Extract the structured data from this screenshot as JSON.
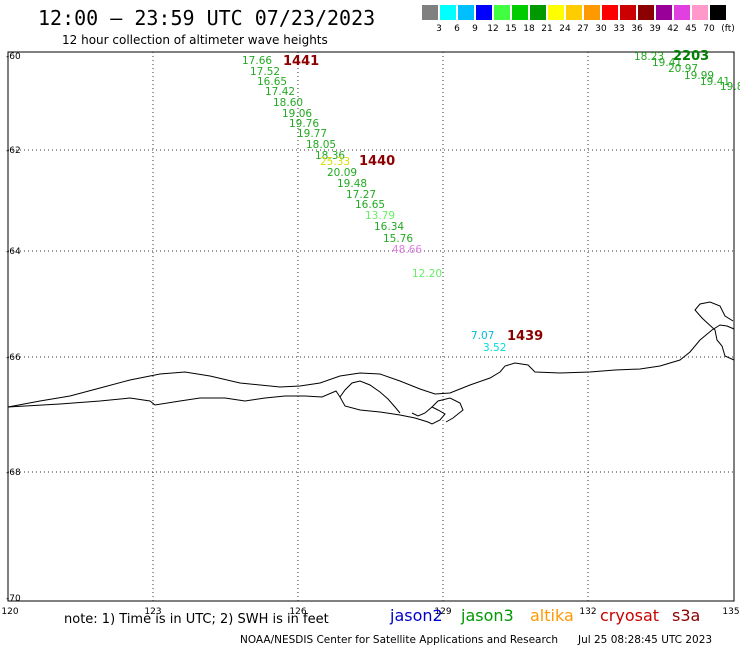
{
  "header": {
    "title": "12:00 – 23:59 UTC 07/23/2023",
    "subtitle": "12 hour collection of altimeter wave heights"
  },
  "scale": {
    "unit": "(ft)",
    "colors": [
      "#808080",
      "#00ffff",
      "#00bfff",
      "#0000ff",
      "#40ff40",
      "#00cc00",
      "#009900",
      "#ffff00",
      "#ffcc00",
      "#ff9900",
      "#ff0000",
      "#cc0000",
      "#8b0000",
      "#990099",
      "#e040e0",
      "#ff99cc",
      "#000000"
    ],
    "labels": [
      "3",
      "6",
      "9",
      "12",
      "15",
      "18",
      "21",
      "24",
      "27",
      "30",
      "33",
      "36",
      "39",
      "42",
      "45",
      "70"
    ]
  },
  "axes": {
    "lat_labels": [
      "-60",
      "-62",
      "-64",
      "-66",
      "-68",
      "-70"
    ],
    "lon_labels": [
      "120",
      "123",
      "126",
      "129",
      "132",
      "135"
    ]
  },
  "passes": [
    {
      "id": "1441",
      "color": "#8b0000"
    },
    {
      "id": "1440",
      "color": "#8b0000"
    },
    {
      "id": "1439",
      "color": "#8b0000"
    },
    {
      "id": "2203",
      "color": "#008000"
    }
  ],
  "wave_heights": [
    {
      "text": "17.66",
      "color": "#22aa22"
    },
    {
      "text": "17.52",
      "color": "#22aa22"
    },
    {
      "text": "16.65",
      "color": "#22aa22"
    },
    {
      "text": "17.42",
      "color": "#22aa22"
    },
    {
      "text": "18.60",
      "color": "#22aa22"
    },
    {
      "text": "19.06",
      "color": "#22aa22"
    },
    {
      "text": "19.76",
      "color": "#22aa22"
    },
    {
      "text": "19.77",
      "color": "#22aa22"
    },
    {
      "text": "18.05",
      "color": "#22aa22"
    },
    {
      "text": "18.36",
      "color": "#22aa22"
    },
    {
      "text": "25.33",
      "color": "#dddd00"
    },
    {
      "text": "20.09",
      "color": "#22aa22"
    },
    {
      "text": "19.48",
      "color": "#22aa22"
    },
    {
      "text": "17.27",
      "color": "#22aa22"
    },
    {
      "text": "16.65",
      "color": "#22aa22"
    },
    {
      "text": "13.79",
      "color": "#66ee66"
    },
    {
      "text": "16.34",
      "color": "#22aa22"
    },
    {
      "text": "15.76",
      "color": "#22aa22"
    },
    {
      "text": "48.66",
      "color": "#e080e0"
    },
    {
      "text": "12.20",
      "color": "#66ee66"
    },
    {
      "text": "7.07",
      "color": "#00bbdd"
    },
    {
      "text": "3.52",
      "color": "#00dddd"
    },
    {
      "text": "18.23",
      "color": "#22aa22"
    },
    {
      "text": "19.41",
      "color": "#22aa22"
    },
    {
      "text": "20.97",
      "color": "#22aa22"
    },
    {
      "text": "19.99",
      "color": "#22aa22"
    },
    {
      "text": "19.41",
      "color": "#22aa22"
    },
    {
      "text": "19.8",
      "color": "#22aa22"
    }
  ],
  "footer": {
    "note": "note: 1) Time is in UTC; 2) SWH is in feet",
    "satellites": [
      {
        "name": "jason2",
        "color": "#0000cc"
      },
      {
        "name": "jason3",
        "color": "#009900"
      },
      {
        "name": "altika",
        "color": "#ff9900"
      },
      {
        "name": "cryosat",
        "color": "#cc0000"
      },
      {
        "name": "s3a",
        "color": "#8b0000"
      }
    ],
    "credit": "NOAA/NESDIS Center for Satellite Applications and Research",
    "timestamp": "Jul 25 08:28:45 UTC 2023"
  }
}
